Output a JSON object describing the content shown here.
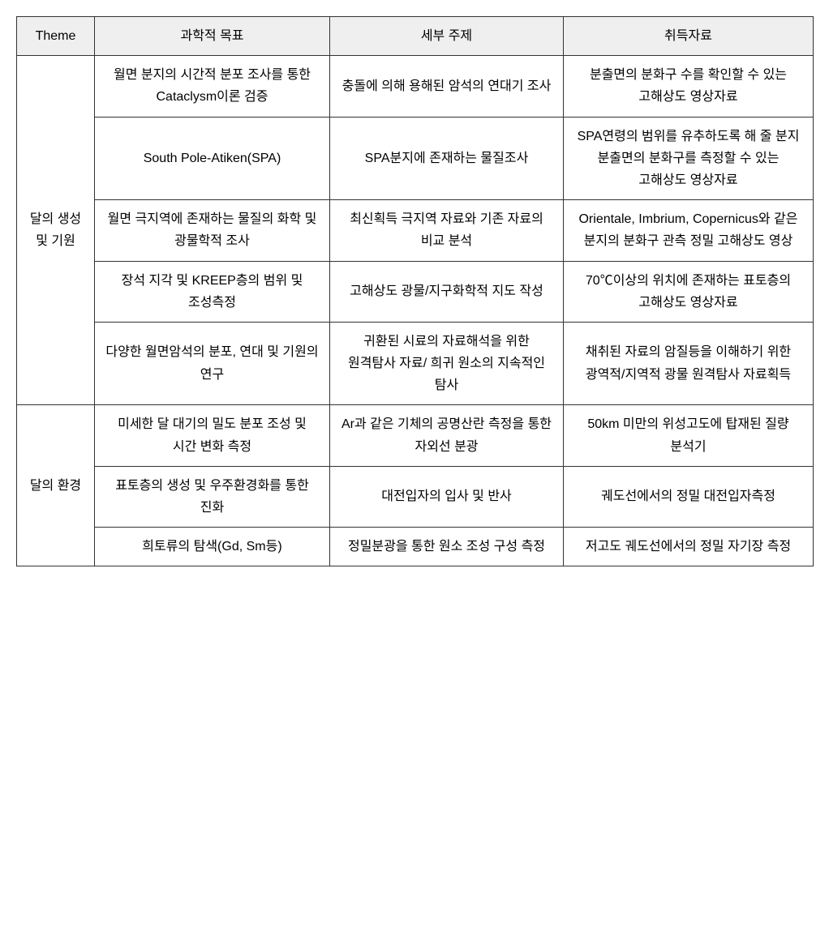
{
  "columns": [
    {
      "key": "theme",
      "label": "Theme"
    },
    {
      "key": "goal",
      "label": "과학적 목표"
    },
    {
      "key": "topic",
      "label": "세부 주제"
    },
    {
      "key": "data",
      "label": "취득자료"
    }
  ],
  "groups": [
    {
      "theme": "달의 생성 및 기원",
      "rows": [
        {
          "goal": "월면 분지의 시간적 분포 조사를 통한 Cataclysm이론 검증",
          "topic": "충돌에 의해 용해된 암석의 연대기 조사",
          "data": "분출면의 분화구 수를 확인할 수 있는 고해상도 영상자료"
        },
        {
          "goal": "South Pole-Atiken(SPA)",
          "topic": "SPA분지에 존재하는 물질조사",
          "data": "SPA연령의 범위를 유추하도록 해 줄 분지 분출면의 분화구를 측정할 수 있는 고해상도 영상자료"
        },
        {
          "goal": "월면 극지역에 존재하는 물질의 화학 및 광물학적 조사",
          "topic": "최신획득 극지역 자료와 기존 자료의 비교 분석",
          "data": "Orientale, Imbrium, Copernicus와 같은 분지의 분화구 관측 정밀 고해상도 영상"
        },
        {
          "goal": "장석 지각 및 KREEP층의 범위 및 조성측정",
          "topic": "고해상도 광물/지구화학적 지도 작성",
          "data": "70℃이상의 위치에 존재하는 표토층의 고해상도 영상자료"
        },
        {
          "goal": "다양한 월면암석의 분포, 연대 및 기원의 연구",
          "topic": "귀환된 시료의 자료해석을 위한 원격탐사 자료/ 희귀 원소의 지속적인 탐사",
          "data": "채취된 자료의 암질등을 이해하기 위한 광역적/지역적 광물 원격탐사 자료획득"
        }
      ]
    },
    {
      "theme": "달의 환경",
      "rows": [
        {
          "goal": "미세한 달 대기의 밀도 분포 조성 및 시간 변화 측정",
          "topic": "Ar과 같은 기체의 공명산란 측정을 통한 자외선 분광",
          "data": "50km 미만의 위성고도에 탑재된 질량 분석기"
        },
        {
          "goal": "표토층의 생성 및 우주환경화를 통한 진화",
          "topic": "대전입자의 입사 및 반사",
          "data": "궤도선에서의 정밀 대전입자측정"
        },
        {
          "goal": "희토류의 탐색(Gd, Sm등)",
          "topic": "정밀분광을 통한 원소 조성 구성 측정",
          "data": "저고도 궤도선에서의 정밀 자기장 측정"
        }
      ]
    }
  ]
}
